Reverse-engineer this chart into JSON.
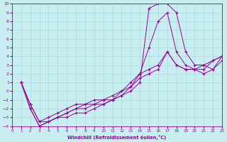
{
  "xlabel": "Windchill (Refroidissement éolien,°C)",
  "xlim": [
    0,
    23
  ],
  "ylim": [
    -4,
    10
  ],
  "xticks": [
    0,
    1,
    2,
    3,
    4,
    5,
    6,
    7,
    8,
    9,
    10,
    11,
    12,
    13,
    14,
    15,
    16,
    17,
    18,
    19,
    20,
    21,
    22,
    23
  ],
  "yticks": [
    -4,
    -3,
    -2,
    -1,
    0,
    1,
    2,
    3,
    4,
    5,
    6,
    7,
    8,
    9,
    10
  ],
  "bg_color": "#c8eef0",
  "grid_color": "#a0d8dc",
  "line_color": "#990099",
  "curves": [
    {
      "x": [
        1,
        2,
        3,
        4,
        5,
        6,
        7,
        8,
        9,
        10,
        11,
        12,
        13,
        14,
        15,
        16,
        17,
        18,
        19,
        20,
        21,
        22,
        23
      ],
      "y": [
        1,
        -2,
        -4,
        -3.5,
        -3,
        -3,
        -2.5,
        -2.5,
        -2,
        -1.5,
        -1,
        -0.5,
        0,
        1,
        9.5,
        10,
        10,
        9,
        4.5,
        3,
        3,
        2.5,
        3.5
      ]
    },
    {
      "x": [
        1,
        2,
        3,
        4,
        5,
        6,
        7,
        8,
        9,
        10,
        11,
        12,
        13,
        14,
        15,
        16,
        17,
        18,
        19,
        20,
        21,
        22,
        23
      ],
      "y": [
        1,
        -2,
        -4,
        -3.5,
        -3,
        -2.5,
        -2,
        -2,
        -1.5,
        -1.5,
        -1,
        -0.5,
        0.5,
        2,
        5,
        8,
        9,
        4.5,
        3,
        2.5,
        3,
        3.5,
        4
      ]
    },
    {
      "x": [
        1,
        2,
        3,
        4,
        5,
        6,
        7,
        8,
        9,
        10,
        11,
        12,
        13,
        14,
        15,
        16,
        17,
        18,
        19,
        20,
        21,
        22,
        23
      ],
      "y": [
        1,
        -1.5,
        -3.5,
        -3.5,
        -3,
        -2.5,
        -2,
        -1.5,
        -1.5,
        -1,
        -1,
        0,
        1,
        2,
        2.5,
        3,
        4.5,
        3,
        2.5,
        2.5,
        2.5,
        3.5,
        4
      ]
    },
    {
      "x": [
        1,
        2,
        3,
        4,
        5,
        6,
        7,
        8,
        9,
        10,
        11,
        12,
        13,
        14,
        15,
        16,
        17,
        18,
        19,
        20,
        21,
        22,
        23
      ],
      "y": [
        1,
        -1.5,
        -3.5,
        -3,
        -2.5,
        -2,
        -1.5,
        -1.5,
        -1,
        -1,
        -0.5,
        0,
        0.5,
        1.5,
        2,
        2.5,
        4.5,
        3,
        2.5,
        2.5,
        2,
        2.5,
        4
      ]
    }
  ]
}
